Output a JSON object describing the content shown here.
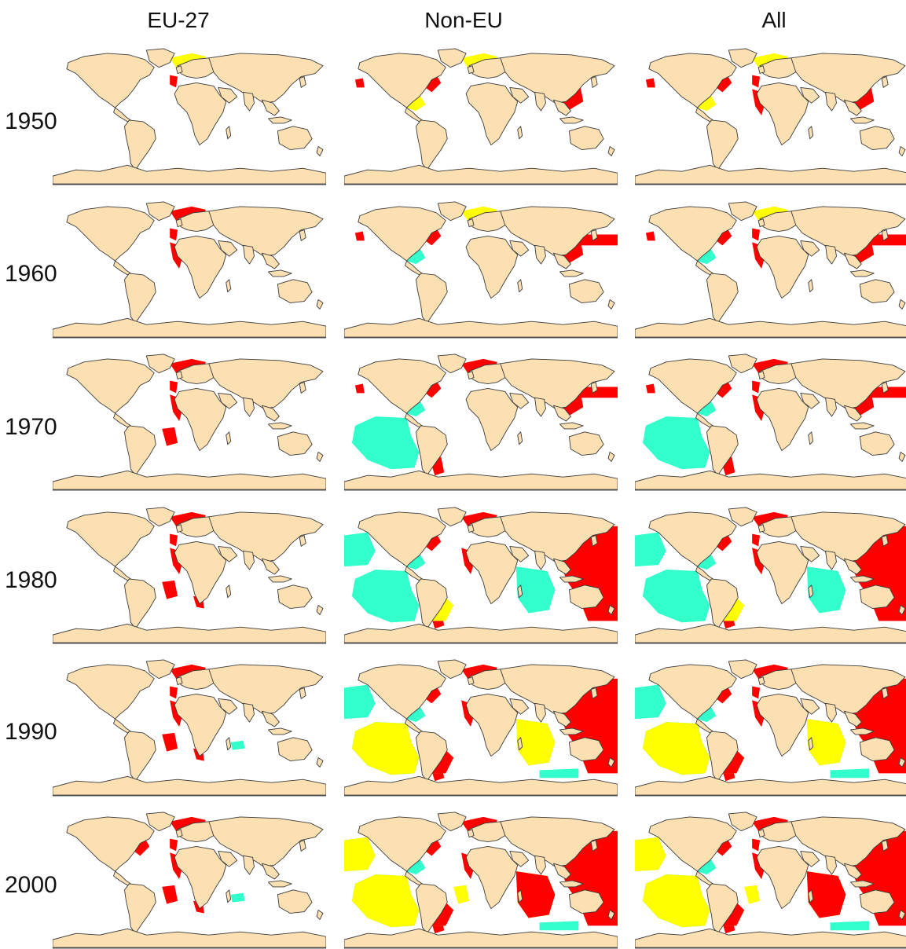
{
  "figure": {
    "columns": [
      {
        "key": "eu27",
        "label": "EU-27"
      },
      {
        "key": "noneu",
        "label": "Non-EU"
      },
      {
        "key": "all",
        "label": "All"
      }
    ],
    "rows": [
      {
        "year": "1950"
      },
      {
        "year": "1960"
      },
      {
        "year": "1970"
      },
      {
        "year": "1980"
      },
      {
        "year": "1990"
      },
      {
        "year": "2000"
      }
    ],
    "colors": {
      "land": "#fce0b2",
      "coast": "#3a3a3a",
      "ocean": "#ffffff",
      "high": "#ff0000",
      "medium": "#ffff00",
      "low": "#33ffcc"
    },
    "intensity_order": [
      "low",
      "medium",
      "high"
    ]
  }
}
